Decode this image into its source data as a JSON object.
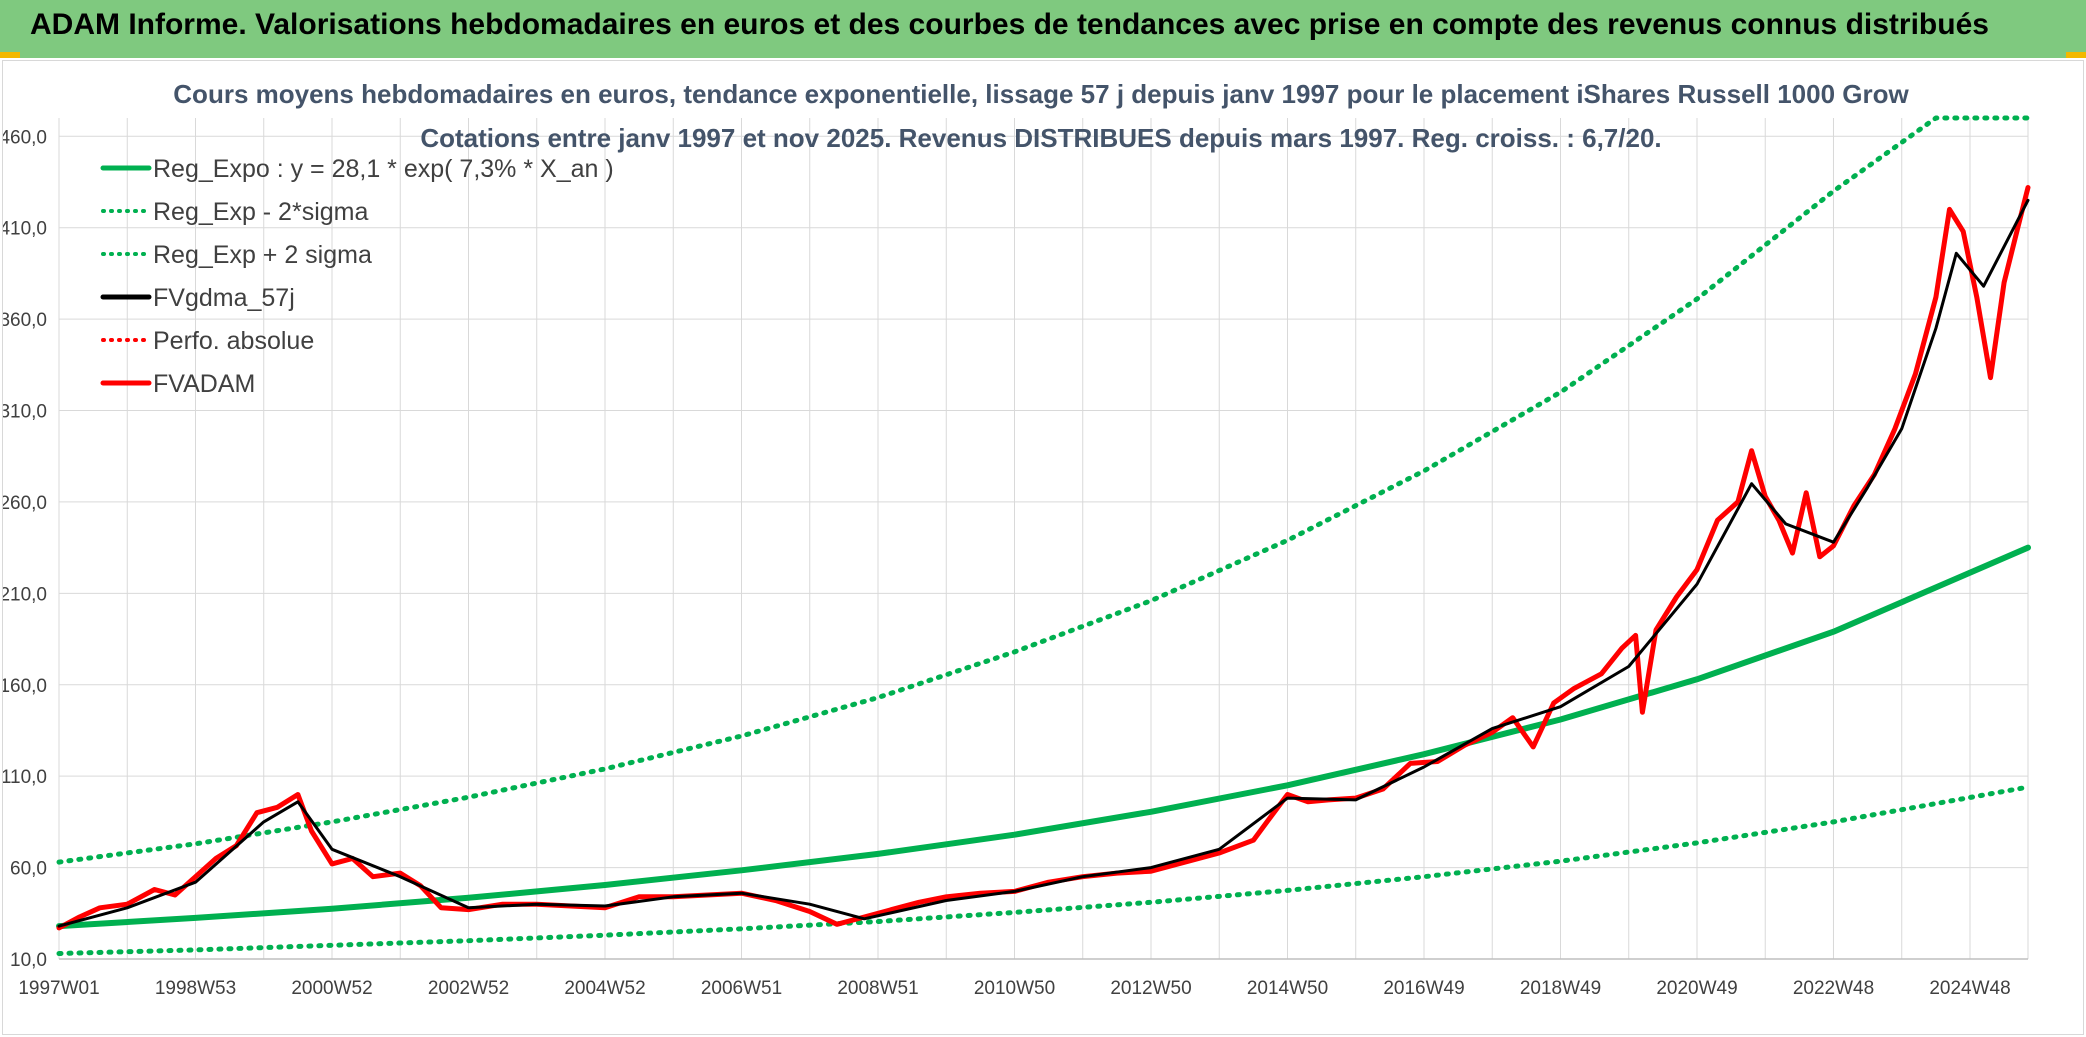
{
  "banner": {
    "title": "ADAM Informe. Valorisations hebdomadaires en euros et des courbes de tendances avec prise en compte des revenus connus distribués"
  },
  "colors": {
    "banner_bg": "#7fc97f",
    "reg_expo": "#00b050",
    "fvgdma": "#000000",
    "fvadam": "#ff0000",
    "perfo": "#ff0000",
    "grid": "#d9d9d9"
  },
  "chart_data": {
    "type": "line",
    "title": "Cours moyens hebdomadaires en euros, tendance exponentielle, lissage 57 j depuis janv 1997 pour le placement iShares Russell 1000 Grow",
    "subtitle": "Cotations entre janv 1997 et nov 2025. Revenus DISTRIBUES depuis mars 1997. Reg. croiss. : 6,7/20.",
    "ylim": [
      10,
      470
    ],
    "xlim": [
      1997.0,
      2025.85
    ],
    "y_ticks": [
      "10,0",
      "60,0",
      "110,0",
      "160,0",
      "210,0",
      "260,0",
      "310,0",
      "360,0",
      "410,0",
      "460,0"
    ],
    "y_tick_values": [
      10,
      60,
      110,
      160,
      210,
      260,
      310,
      360,
      410,
      460
    ],
    "x_ticks": [
      "1997W01",
      "1998W53",
      "2000W52",
      "2002W52",
      "2004W52",
      "2006W51",
      "2008W51",
      "2010W50",
      "2012W50",
      "2014W50",
      "2016W49",
      "2018W49",
      "2020W49",
      "2022W48",
      "2024W48"
    ],
    "x_tick_values": [
      1997.0,
      1999.0,
      2001.0,
      2003.0,
      2005.0,
      2007.0,
      2009.0,
      2011.0,
      2013.0,
      2015.0,
      2017.0,
      2019.0,
      2021.0,
      2023.0,
      2025.0
    ],
    "grid": true,
    "legend_position": "top-left",
    "legend": [
      {
        "label": "Reg_Expo : y = 28,1 * exp( 7,3% *  X_an )",
        "style": "solid",
        "color": "#00b050"
      },
      {
        "label": "Reg_Exp - 2*sigma",
        "style": "dotted",
        "color": "#00b050"
      },
      {
        "label": "Reg_Exp + 2 sigma",
        "style": "dotted",
        "color": "#00b050"
      },
      {
        "label": "FVgdma_57j",
        "style": "solid",
        "color": "#000000"
      },
      {
        "label": "Perfo. absolue",
        "style": "dotted",
        "color": "#ff0000"
      },
      {
        "label": "FVADAM",
        "style": "solid",
        "color": "#ff0000"
      }
    ],
    "series": [
      {
        "name": "Reg_Expo : y = 28,1 * exp( 7,3% *  X_an )",
        "x": [
          1997.0,
          1999.0,
          2001.0,
          2003.0,
          2005.0,
          2007.0,
          2009.0,
          2011.0,
          2013.0,
          2015.0,
          2017.0,
          2019.0,
          2021.0,
          2023.0,
          2025.85
        ],
        "y": [
          28,
          32.5,
          37.5,
          43.5,
          50.5,
          58.5,
          67.5,
          78,
          90.5,
          105,
          122,
          141,
          163,
          189,
          235
        ]
      },
      {
        "name": "Reg_Exp - 2*sigma",
        "x": [
          1997.0,
          1999.0,
          2001.0,
          2003.0,
          2005.0,
          2007.0,
          2009.0,
          2011.0,
          2013.0,
          2015.0,
          2017.0,
          2019.0,
          2021.0,
          2023.0,
          2025.85
        ],
        "y": [
          13,
          15,
          17.5,
          20,
          23,
          26.5,
          30.5,
          35.5,
          41,
          47.5,
          55,
          63.5,
          73.5,
          85,
          104
        ]
      },
      {
        "name": "Reg_Exp + 2 sigma",
        "x": [
          1997.0,
          1999.0,
          2001.0,
          2003.0,
          2005.0,
          2007.0,
          2009.0,
          2011.0,
          2013.0,
          2015.0,
          2017.0,
          2019.0,
          2021.0,
          2023.0,
          2024.5,
          2025.85
        ],
        "y": [
          63,
          73,
          85,
          98.5,
          114,
          132,
          153,
          178,
          206,
          239,
          277,
          320,
          371,
          430,
          470,
          470
        ]
      },
      {
        "name": "FVADAM",
        "x": [
          1997.0,
          1997.3,
          1997.6,
          1998.0,
          1998.4,
          1998.7,
          1999.0,
          1999.3,
          1999.6,
          1999.9,
          2000.2,
          2000.5,
          2000.7,
          2001.0,
          2001.3,
          2001.6,
          2002.0,
          2002.3,
          2002.6,
          2003.0,
          2003.5,
          2004.0,
          2004.5,
          2005.0,
          2005.5,
          2006.0,
          2006.5,
          2007.0,
          2007.5,
          2008.0,
          2008.4,
          2008.8,
          2009.2,
          2009.6,
          2010.0,
          2010.5,
          2011.0,
          2011.5,
          2012.0,
          2012.5,
          2013.0,
          2013.5,
          2014.0,
          2014.5,
          2014.8,
          2015.0,
          2015.3,
          2015.6,
          2016.0,
          2016.4,
          2016.8,
          2017.2,
          2017.6,
          2018.0,
          2018.3,
          2018.6,
          2018.9,
          2019.2,
          2019.6,
          2019.9,
          2020.1,
          2020.2,
          2020.4,
          2020.7,
          2021.0,
          2021.3,
          2021.6,
          2021.8,
          2022.0,
          2022.2,
          2022.4,
          2022.6,
          2022.8,
          2023.0,
          2023.3,
          2023.6,
          2023.9,
          2024.2,
          2024.5,
          2024.7,
          2024.9,
          2025.1,
          2025.3,
          2025.5,
          2025.7,
          2025.85
        ],
        "y": [
          27,
          33,
          38,
          40,
          48,
          45,
          55,
          65,
          72,
          90,
          93,
          100,
          80,
          62,
          65,
          55,
          57,
          50,
          38,
          37,
          40,
          40,
          39,
          38,
          44,
          44,
          45,
          46,
          42,
          36,
          29,
          33,
          37,
          41,
          44,
          46,
          47,
          52,
          55,
          57,
          58,
          63,
          68,
          75,
          90,
          100,
          96,
          97,
          98,
          103,
          117,
          118,
          127,
          134,
          142,
          126,
          150,
          158,
          166,
          180,
          187,
          145,
          190,
          208,
          223,
          250,
          260,
          288,
          263,
          250,
          232,
          265,
          230,
          236,
          258,
          275,
          300,
          330,
          372,
          420,
          408,
          372,
          328,
          380,
          410,
          432
        ]
      },
      {
        "name": "FVgdma_57j",
        "x": [
          1997.0,
          1998.0,
          1999.0,
          2000.0,
          2000.5,
          2001.0,
          2002.0,
          2003.0,
          2004.0,
          2005.0,
          2006.0,
          2007.0,
          2008.0,
          2008.8,
          2010.0,
          2011.0,
          2012.0,
          2013.0,
          2014.0,
          2015.0,
          2016.0,
          2017.0,
          2018.0,
          2019.0,
          2020.0,
          2021.0,
          2021.8,
          2022.3,
          2023.0,
          2023.5,
          2024.0,
          2024.5,
          2024.8,
          2025.2,
          2025.85
        ],
        "y": [
          28,
          38,
          52,
          85,
          96,
          70,
          55,
          38,
          40,
          39,
          44,
          46,
          40,
          32,
          42,
          47,
          55,
          60,
          70,
          98,
          97,
          115,
          136,
          148,
          170,
          215,
          270,
          248,
          238,
          268,
          300,
          355,
          396,
          378,
          425
        ]
      }
    ]
  }
}
